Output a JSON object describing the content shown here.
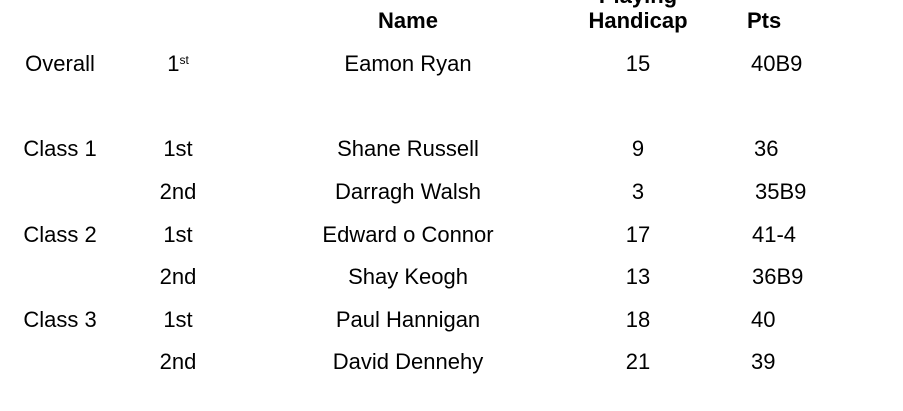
{
  "header": {
    "name": "Name",
    "playing": "Playing",
    "handicap": "Handicap",
    "pts": "Pts"
  },
  "overall": {
    "label": "Overall",
    "place": "1",
    "place_suffix": "st",
    "name": "Eamon Ryan",
    "handicap": "15",
    "pts": "40B9"
  },
  "rows": [
    {
      "class": "Class 1",
      "place": "1st",
      "name": "Shane Russell",
      "handicap": "9",
      "pts": "36"
    },
    {
      "class": "",
      "place": "2nd",
      "name": "Darragh Walsh",
      "handicap": "3",
      "pts": "35B9"
    },
    {
      "class": "Class 2",
      "place": "1st",
      "name": "Edward o Connor",
      "handicap": "17",
      "pts": "41-4"
    },
    {
      "class": "",
      "place": "2nd",
      "name": "Shay Keogh",
      "handicap": "13",
      "pts": "36B9"
    },
    {
      "class": "Class 3",
      "place": "1st",
      "name": "Paul Hannigan",
      "handicap": "18",
      "pts": "40"
    },
    {
      "class": "",
      "place": "2nd",
      "name": "David Dennehy",
      "handicap": "21",
      "pts": "39"
    }
  ]
}
